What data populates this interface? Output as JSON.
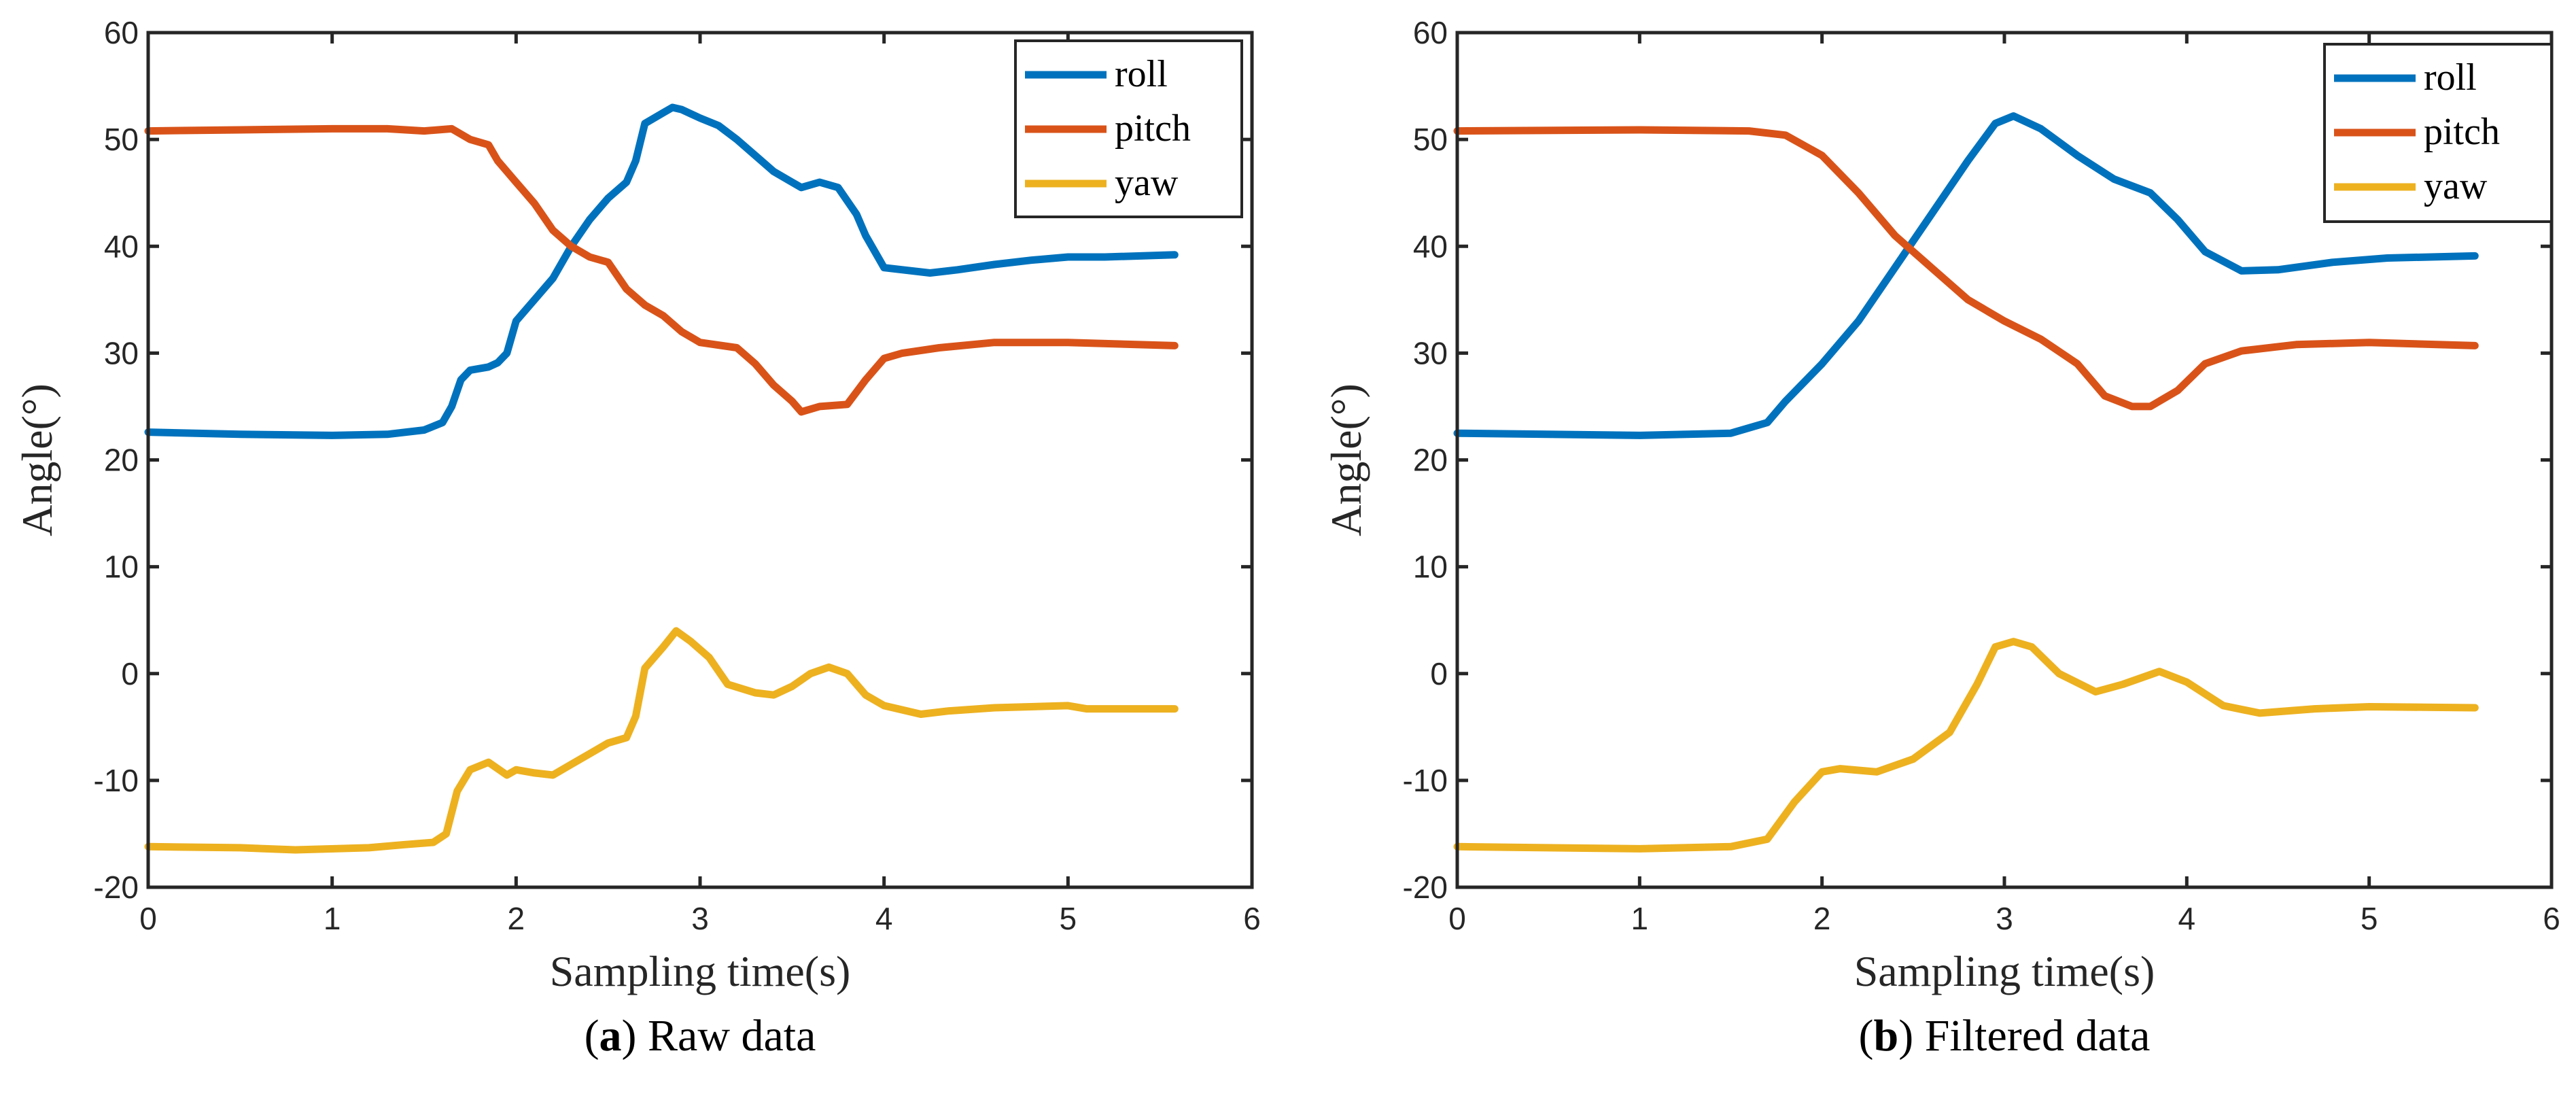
{
  "chart_data": [
    {
      "type": "line",
      "caption_letter": "a",
      "caption_text": ") Raw data",
      "caption_open": "(",
      "xlabel": "Sampling time(s)",
      "ylabel": "Angle(°)",
      "xlim": [
        0,
        6
      ],
      "ylim": [
        -20,
        60
      ],
      "xticks": [
        0,
        1,
        2,
        3,
        4,
        5,
        6
      ],
      "yticks": [
        -20,
        -10,
        0,
        10,
        20,
        30,
        40,
        50,
        60
      ],
      "grid": false,
      "legend_position": "top-right",
      "series": [
        {
          "name": "roll",
          "color": "#0072BD",
          "points": [
            [
              0,
              22.6
            ],
            [
              0.5,
              22.4
            ],
            [
              1,
              22.3
            ],
            [
              1.3,
              22.4
            ],
            [
              1.5,
              22.8
            ],
            [
              1.6,
              23.5
            ],
            [
              1.65,
              25
            ],
            [
              1.7,
              27.5
            ],
            [
              1.75,
              28.4
            ],
            [
              1.85,
              28.7
            ],
            [
              1.9,
              29.1
            ],
            [
              1.95,
              30
            ],
            [
              2.0,
              33
            ],
            [
              2.1,
              35
            ],
            [
              2.2,
              37
            ],
            [
              2.3,
              40
            ],
            [
              2.4,
              42.5
            ],
            [
              2.5,
              44.5
            ],
            [
              2.6,
              46
            ],
            [
              2.65,
              48
            ],
            [
              2.7,
              51.5
            ],
            [
              2.8,
              52.5
            ],
            [
              2.85,
              53
            ],
            [
              2.9,
              52.8
            ],
            [
              3.0,
              52
            ],
            [
              3.1,
              51.3
            ],
            [
              3.2,
              50
            ],
            [
              3.3,
              48.5
            ],
            [
              3.4,
              47
            ],
            [
              3.5,
              46
            ],
            [
              3.55,
              45.5
            ],
            [
              3.65,
              46
            ],
            [
              3.75,
              45.5
            ],
            [
              3.85,
              43
            ],
            [
              3.9,
              41
            ],
            [
              4.0,
              38
            ],
            [
              4.1,
              37.8
            ],
            [
              4.25,
              37.5
            ],
            [
              4.4,
              37.8
            ],
            [
              4.6,
              38.3
            ],
            [
              4.8,
              38.7
            ],
            [
              5.0,
              39
            ],
            [
              5.2,
              39
            ],
            [
              5.58,
              39.2
            ]
          ]
        },
        {
          "name": "pitch",
          "color": "#D95319",
          "points": [
            [
              0,
              50.8
            ],
            [
              0.5,
              50.9
            ],
            [
              1,
              51
            ],
            [
              1.3,
              51
            ],
            [
              1.5,
              50.8
            ],
            [
              1.65,
              51
            ],
            [
              1.75,
              50
            ],
            [
              1.85,
              49.5
            ],
            [
              1.9,
              48
            ],
            [
              2.0,
              46
            ],
            [
              2.1,
              44
            ],
            [
              2.2,
              41.5
            ],
            [
              2.3,
              40
            ],
            [
              2.4,
              39
            ],
            [
              2.5,
              38.5
            ],
            [
              2.6,
              36
            ],
            [
              2.7,
              34.5
            ],
            [
              2.8,
              33.5
            ],
            [
              2.9,
              32
            ],
            [
              3.0,
              31
            ],
            [
              3.2,
              30.5
            ],
            [
              3.3,
              29
            ],
            [
              3.4,
              27
            ],
            [
              3.5,
              25.5
            ],
            [
              3.55,
              24.5
            ],
            [
              3.65,
              25
            ],
            [
              3.8,
              25.2
            ],
            [
              3.9,
              27.5
            ],
            [
              4.0,
              29.5
            ],
            [
              4.1,
              30
            ],
            [
              4.3,
              30.5
            ],
            [
              4.6,
              31
            ],
            [
              5.0,
              31
            ],
            [
              5.58,
              30.7
            ]
          ]
        },
        {
          "name": "yaw",
          "color": "#EDB120",
          "points": [
            [
              0,
              -16.2
            ],
            [
              0.5,
              -16.3
            ],
            [
              0.8,
              -16.5
            ],
            [
              1.2,
              -16.3
            ],
            [
              1.4,
              -16
            ],
            [
              1.55,
              -15.8
            ],
            [
              1.62,
              -15
            ],
            [
              1.68,
              -11
            ],
            [
              1.75,
              -9
            ],
            [
              1.85,
              -8.3
            ],
            [
              1.95,
              -9.5
            ],
            [
              2.0,
              -9
            ],
            [
              2.1,
              -9.3
            ],
            [
              2.2,
              -9.5
            ],
            [
              2.3,
              -8.5
            ],
            [
              2.4,
              -7.5
            ],
            [
              2.5,
              -6.5
            ],
            [
              2.6,
              -6
            ],
            [
              2.65,
              -4
            ],
            [
              2.7,
              0.5
            ],
            [
              2.8,
              2.5
            ],
            [
              2.87,
              4
            ],
            [
              2.95,
              3
            ],
            [
              3.05,
              1.5
            ],
            [
              3.15,
              -1
            ],
            [
              3.3,
              -1.8
            ],
            [
              3.4,
              -2
            ],
            [
              3.5,
              -1.2
            ],
            [
              3.6,
              0
            ],
            [
              3.7,
              0.6
            ],
            [
              3.8,
              0
            ],
            [
              3.9,
              -2
            ],
            [
              4.0,
              -3
            ],
            [
              4.2,
              -3.8
            ],
            [
              4.35,
              -3.5
            ],
            [
              4.6,
              -3.2
            ],
            [
              5.0,
              -3
            ],
            [
              5.1,
              -3.3
            ],
            [
              5.58,
              -3.3
            ]
          ]
        }
      ]
    },
    {
      "type": "line",
      "caption_letter": "b",
      "caption_text": ") Filtered data",
      "caption_open": "(",
      "xlabel": "Sampling time(s)",
      "ylabel": "Angle(°)",
      "xlim": [
        0,
        6
      ],
      "ylim": [
        -20,
        60
      ],
      "xticks": [
        0,
        1,
        2,
        3,
        4,
        5,
        6
      ],
      "yticks": [
        -20,
        -10,
        0,
        10,
        20,
        30,
        40,
        50,
        60
      ],
      "grid": false,
      "legend_position": "top-right",
      "series": [
        {
          "name": "roll",
          "color": "#0072BD",
          "points": [
            [
              0,
              22.5
            ],
            [
              1,
              22.3
            ],
            [
              1.5,
              22.5
            ],
            [
              1.7,
              23.5
            ],
            [
              1.8,
              25.5
            ],
            [
              2.0,
              29
            ],
            [
              2.2,
              33
            ],
            [
              2.4,
              38
            ],
            [
              2.6,
              43
            ],
            [
              2.8,
              48
            ],
            [
              2.95,
              51.5
            ],
            [
              3.05,
              52.2
            ],
            [
              3.2,
              51
            ],
            [
              3.4,
              48.5
            ],
            [
              3.6,
              46.3
            ],
            [
              3.8,
              45
            ],
            [
              3.95,
              42.5
            ],
            [
              4.1,
              39.5
            ],
            [
              4.3,
              37.7
            ],
            [
              4.5,
              37.8
            ],
            [
              4.8,
              38.5
            ],
            [
              5.1,
              38.9
            ],
            [
              5.58,
              39.1
            ]
          ]
        },
        {
          "name": "pitch",
          "color": "#D95319",
          "points": [
            [
              0,
              50.8
            ],
            [
              1,
              50.9
            ],
            [
              1.6,
              50.8
            ],
            [
              1.8,
              50.4
            ],
            [
              2.0,
              48.5
            ],
            [
              2.2,
              45
            ],
            [
              2.4,
              41
            ],
            [
              2.6,
              38
            ],
            [
              2.8,
              35
            ],
            [
              3.0,
              33
            ],
            [
              3.2,
              31.3
            ],
            [
              3.4,
              29
            ],
            [
              3.55,
              26
            ],
            [
              3.7,
              25
            ],
            [
              3.8,
              25
            ],
            [
              3.95,
              26.5
            ],
            [
              4.1,
              29
            ],
            [
              4.3,
              30.2
            ],
            [
              4.6,
              30.8
            ],
            [
              5.0,
              31
            ],
            [
              5.58,
              30.7
            ]
          ]
        },
        {
          "name": "yaw",
          "color": "#EDB120",
          "points": [
            [
              0,
              -16.2
            ],
            [
              1,
              -16.4
            ],
            [
              1.5,
              -16.2
            ],
            [
              1.7,
              -15.5
            ],
            [
              1.85,
              -12
            ],
            [
              2.0,
              -9.2
            ],
            [
              2.1,
              -8.9
            ],
            [
              2.3,
              -9.2
            ],
            [
              2.5,
              -8
            ],
            [
              2.7,
              -5.5
            ],
            [
              2.85,
              -1
            ],
            [
              2.95,
              2.5
            ],
            [
              3.05,
              3
            ],
            [
              3.15,
              2.5
            ],
            [
              3.3,
              0
            ],
            [
              3.5,
              -1.7
            ],
            [
              3.65,
              -1
            ],
            [
              3.85,
              0.2
            ],
            [
              4.0,
              -0.8
            ],
            [
              4.2,
              -3
            ],
            [
              4.4,
              -3.7
            ],
            [
              4.7,
              -3.3
            ],
            [
              5.0,
              -3.1
            ],
            [
              5.58,
              -3.2
            ]
          ]
        }
      ]
    }
  ]
}
